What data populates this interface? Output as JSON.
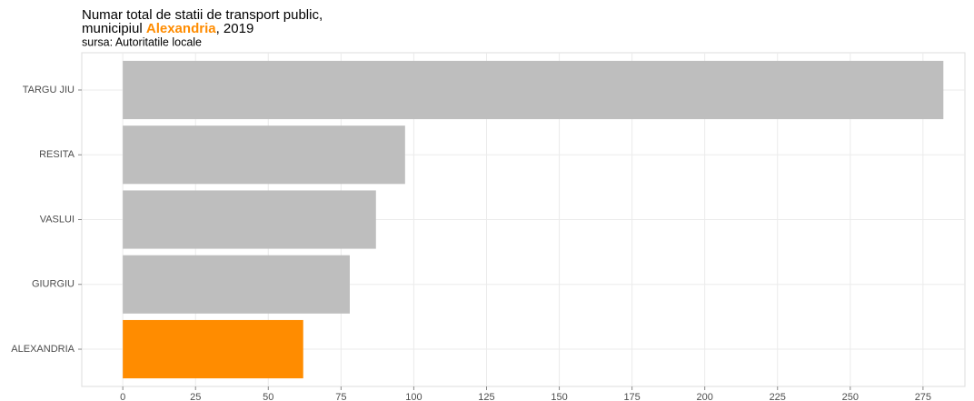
{
  "chart_data": {
    "type": "barh",
    "title": {
      "line1": "Numar total de statii de transport public,",
      "line2": [
        "municipiul ",
        "Alexandria",
        ", 2019"
      ]
    },
    "title_highlight_color": "#ff8c00",
    "subtitle": "sursa: Autoritatile locale",
    "categories": [
      "TARGU JIU",
      "RESITA",
      "VASLUI",
      "GIURGIU",
      "ALEXANDRIA"
    ],
    "values": [
      282,
      97,
      87,
      78,
      62
    ],
    "colors": [
      "#bebebe",
      "#bebebe",
      "#bebebe",
      "#bebebe",
      "#ff8c00"
    ],
    "xlim": [
      -14.1,
      289.4
    ],
    "xticks": [
      0,
      25,
      50,
      75,
      100,
      125,
      150,
      175,
      200,
      225,
      250,
      275
    ],
    "grid": true
  }
}
